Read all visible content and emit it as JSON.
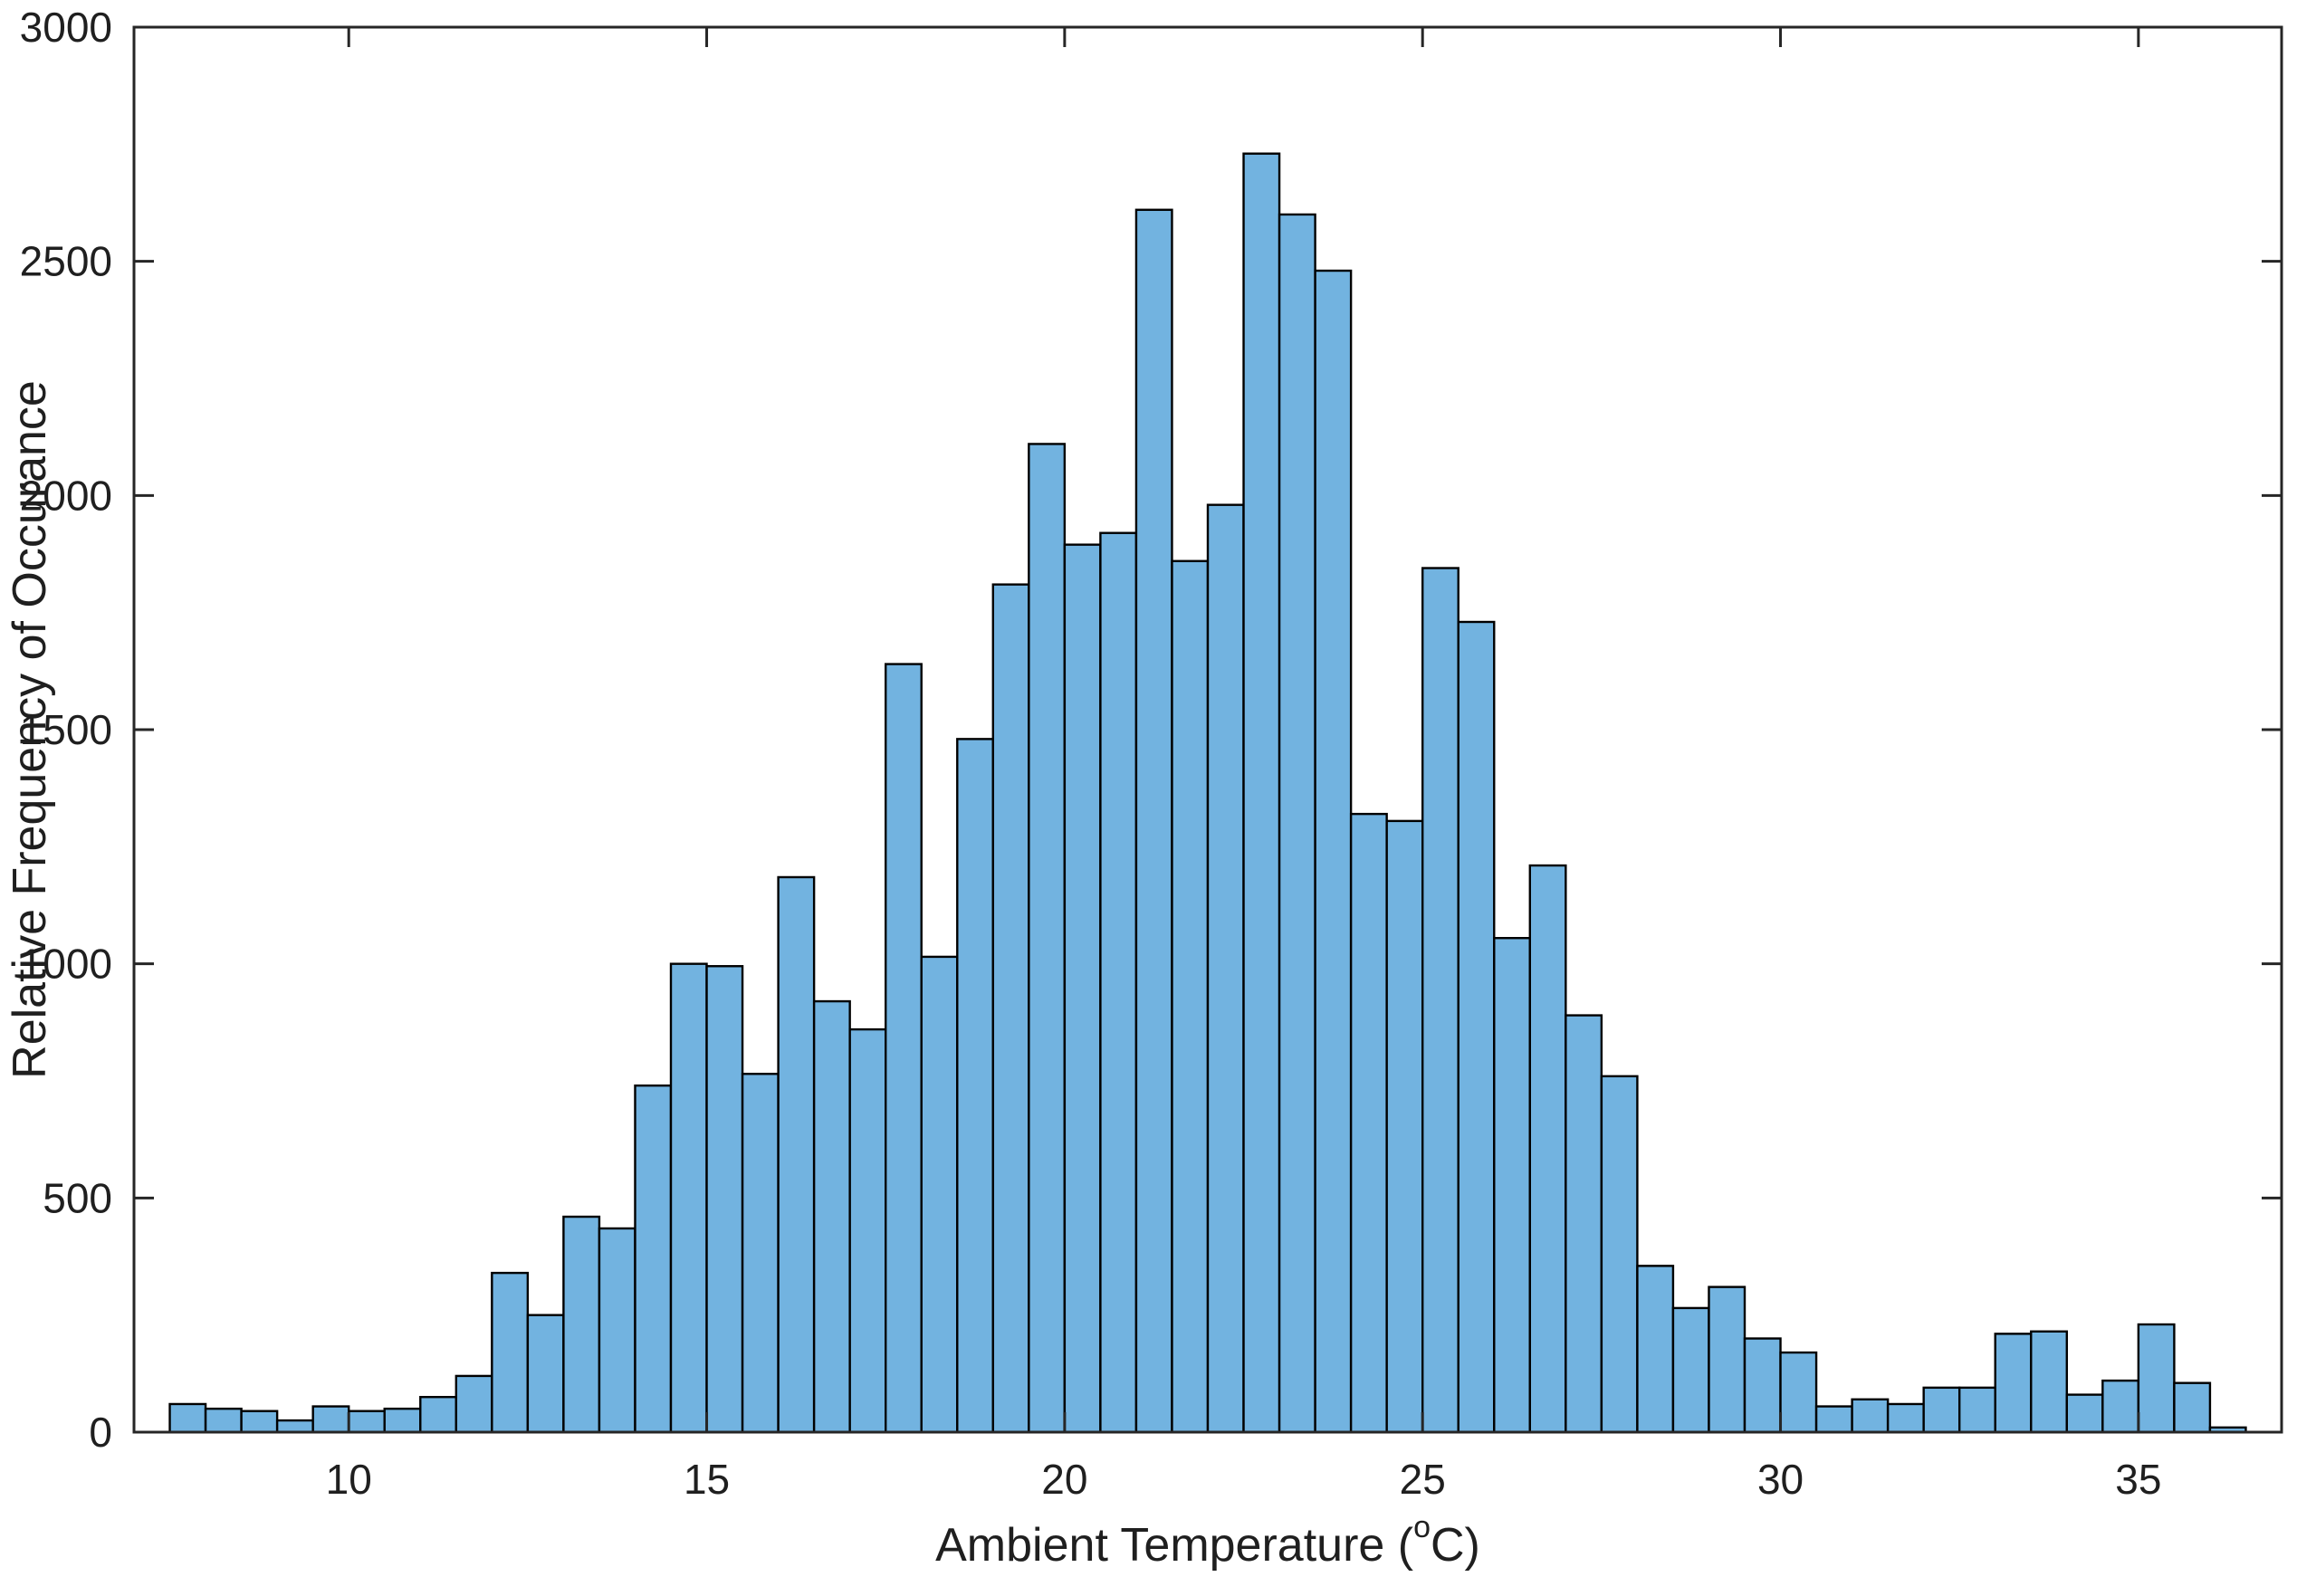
{
  "figure": {
    "background": "#ffffff"
  },
  "chart_data": {
    "type": "bar",
    "subtype": "histogram",
    "title": "",
    "ylabel": "Relative Frequency of Occurance",
    "xlabel_prefix": "Ambient Temperature (",
    "xlabel_sup": "o",
    "xlabel_suffix": "C)",
    "xlim": [
      7,
      37
    ],
    "ylim": [
      0,
      3000
    ],
    "xticks": [
      10,
      15,
      20,
      25,
      30,
      35
    ],
    "yticks": [
      0,
      500,
      1000,
      1500,
      2000,
      2500,
      3000
    ],
    "bin_start": 7.5,
    "bin_width": 0.5,
    "values": [
      60,
      50,
      45,
      25,
      55,
      45,
      50,
      75,
      120,
      340,
      250,
      460,
      435,
      740,
      1000,
      995,
      765,
      1185,
      920,
      860,
      1640,
      1015,
      1480,
      1810,
      2110,
      1895,
      1920,
      2610,
      1860,
      1980,
      2730,
      2600,
      2480,
      1320,
      1305,
      1845,
      1730,
      1055,
      1210,
      890,
      760,
      355,
      265,
      310,
      200,
      170,
      55,
      70,
      60,
      95,
      95,
      210,
      215,
      80,
      110,
      230,
      105,
      10
    ],
    "grid": false,
    "legend": "none",
    "bar_fill": "#72B3E0",
    "bar_stroke": "#000000",
    "axis_color": "#262626"
  }
}
